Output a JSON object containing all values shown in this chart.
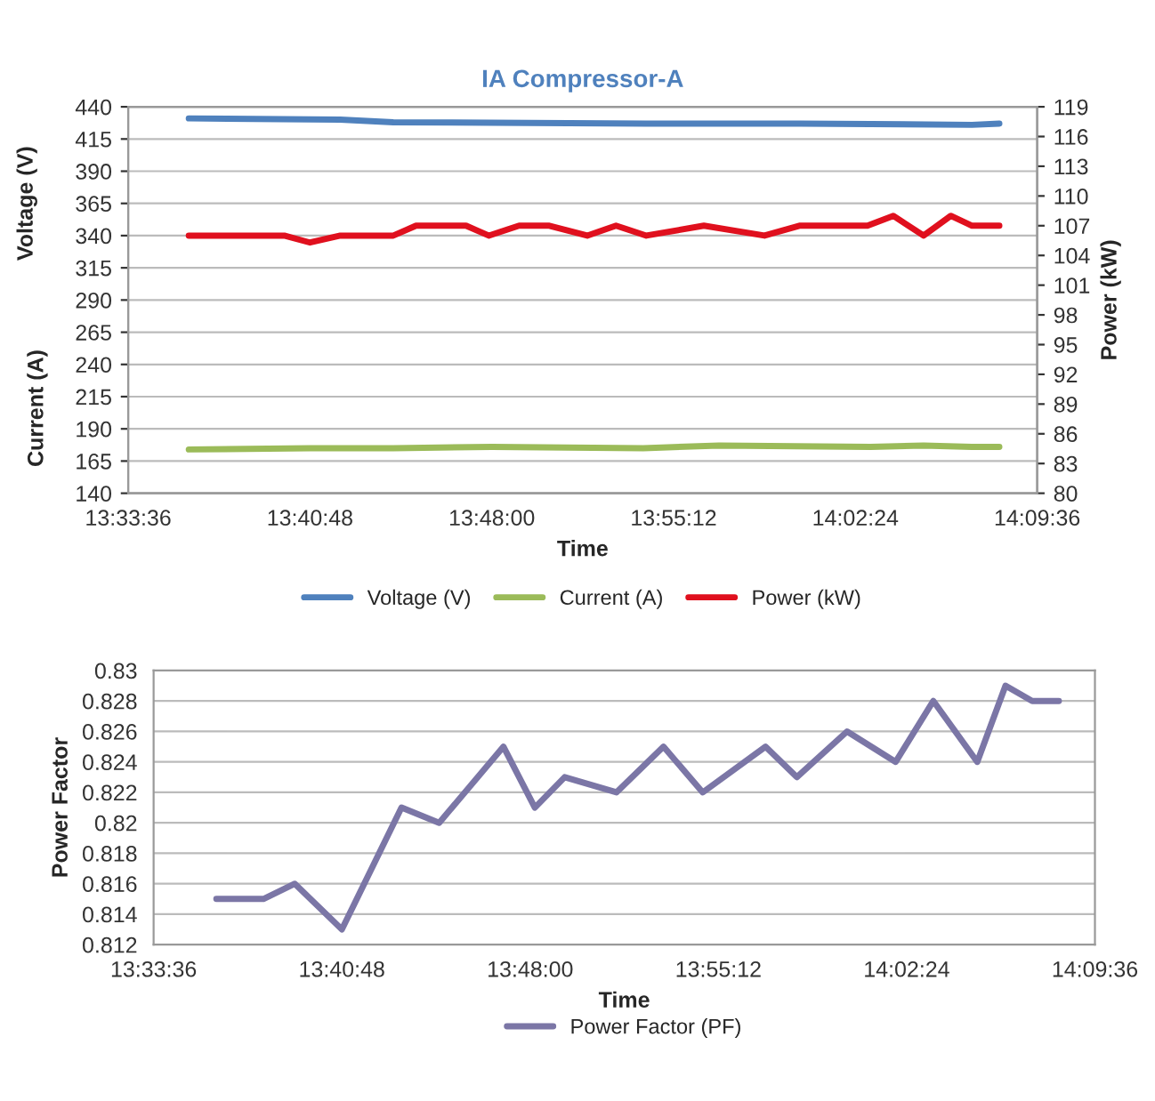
{
  "chart_data": [
    {
      "type": "line",
      "title": "IA Compressor-A",
      "xlabel": "Time",
      "ylabel": "Voltage (V)",
      "y2label": "Power (kW)",
      "annotations": [
        "Current (A)"
      ],
      "xlim": [
        13.56,
        14.16
      ],
      "xticks": [
        {
          "value": 13.56,
          "label": "13:33:36"
        },
        {
          "value": 13.68,
          "label": "13:40:48"
        },
        {
          "value": 13.8,
          "label": "13:48:00"
        },
        {
          "value": 13.92,
          "label": "13:55:12"
        },
        {
          "value": 14.04,
          "label": "14:02:24"
        },
        {
          "value": 14.16,
          "label": "14:09:36"
        }
      ],
      "ylim": [
        140,
        440
      ],
      "yticks": [
        140,
        165,
        190,
        215,
        240,
        265,
        290,
        315,
        340,
        365,
        390,
        415,
        440
      ],
      "y2lim": [
        80,
        119
      ],
      "y2ticks": [
        80,
        83,
        86,
        89,
        92,
        95,
        98,
        101,
        104,
        107,
        110,
        113,
        116,
        119
      ],
      "grid": "y",
      "legend": "bottom",
      "marker": "none",
      "line_style": "solid",
      "series": [
        {
          "name": "Voltage (V)",
          "color": "#4f81bd",
          "x": [
            13.6,
            13.7,
            13.735,
            13.902,
            14.003,
            14.117,
            14.135
          ],
          "values": [
            431,
            430,
            428,
            427,
            427,
            426,
            427
          ]
        },
        {
          "name": "Current (A)",
          "color": "#9bbb59",
          "x": [
            13.6,
            13.68,
            13.735,
            13.8,
            13.9,
            13.95,
            14.05,
            14.085,
            14.117,
            14.135
          ],
          "values": [
            174,
            175,
            175,
            176,
            175,
            177,
            176,
            177,
            176,
            176
          ]
        },
        {
          "name": "Power (kW)",
          "color": "#e0101e",
          "axis": "y2",
          "x": [
            13.6,
            13.663,
            13.68,
            13.7,
            13.735,
            13.75,
            13.783,
            13.798,
            13.818,
            13.838,
            13.863,
            13.882,
            13.902,
            13.94,
            13.98,
            14.003,
            14.048,
            14.065,
            14.085,
            14.103,
            14.117,
            14.135
          ],
          "values": [
            106,
            106,
            105.3,
            106,
            106,
            107,
            107,
            106,
            107,
            107,
            106,
            107,
            106,
            107,
            106,
            107,
            107,
            108,
            106,
            108,
            107,
            107
          ]
        }
      ]
    },
    {
      "type": "line",
      "xlabel": "Time",
      "ylabel": "Power Factor",
      "xlim": [
        13.56,
        14.16
      ],
      "xticks": [
        {
          "value": 13.56,
          "label": "13:33:36"
        },
        {
          "value": 13.68,
          "label": "13:40:48"
        },
        {
          "value": 13.8,
          "label": "13:48:00"
        },
        {
          "value": 13.92,
          "label": "13:55:12"
        },
        {
          "value": 14.04,
          "label": "14:02:24"
        },
        {
          "value": 14.16,
          "label": "14:09:36"
        }
      ],
      "ylim": [
        0.812,
        0.83
      ],
      "yticks": [
        0.812,
        0.814,
        0.816,
        0.818,
        0.82,
        0.822,
        0.824,
        0.826,
        0.828,
        0.83
      ],
      "grid": "y",
      "legend": "bottom",
      "marker": "none",
      "line_style": "solid",
      "series": [
        {
          "name": "Power Factor (PF)",
          "color": "#7b76a6",
          "x": [
            13.6,
            13.63,
            13.65,
            13.68,
            13.718,
            13.742,
            13.783,
            13.803,
            13.822,
            13.855,
            13.885,
            13.91,
            13.95,
            13.97,
            14.002,
            14.033,
            14.057,
            14.085,
            14.103,
            14.12,
            14.137
          ],
          "values": [
            0.815,
            0.815,
            0.816,
            0.813,
            0.821,
            0.82,
            0.825,
            0.821,
            0.823,
            0.822,
            0.825,
            0.822,
            0.825,
            0.823,
            0.826,
            0.824,
            0.828,
            0.824,
            0.829,
            0.828,
            0.828
          ]
        }
      ]
    }
  ]
}
